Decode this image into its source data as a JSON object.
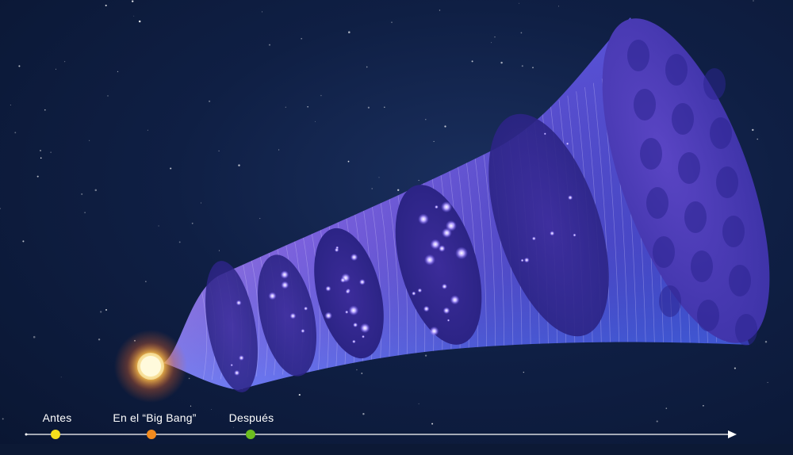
{
  "timeline": {
    "points": [
      {
        "label": "Antes",
        "color": "#f4e01d"
      },
      {
        "label": "En el “Big Bang”",
        "color": "#f28a1e"
      },
      {
        "label": "Después",
        "color": "#6cbd1f"
      }
    ]
  },
  "icons": {
    "big_bang": "glowing-star-icon",
    "arrow": "arrow-right-icon"
  },
  "colors": {
    "background": "#0f1f44",
    "cone_light": "#b17cf0",
    "cone_dark": "#4a3fc9",
    "glow": "#ffb13b"
  }
}
